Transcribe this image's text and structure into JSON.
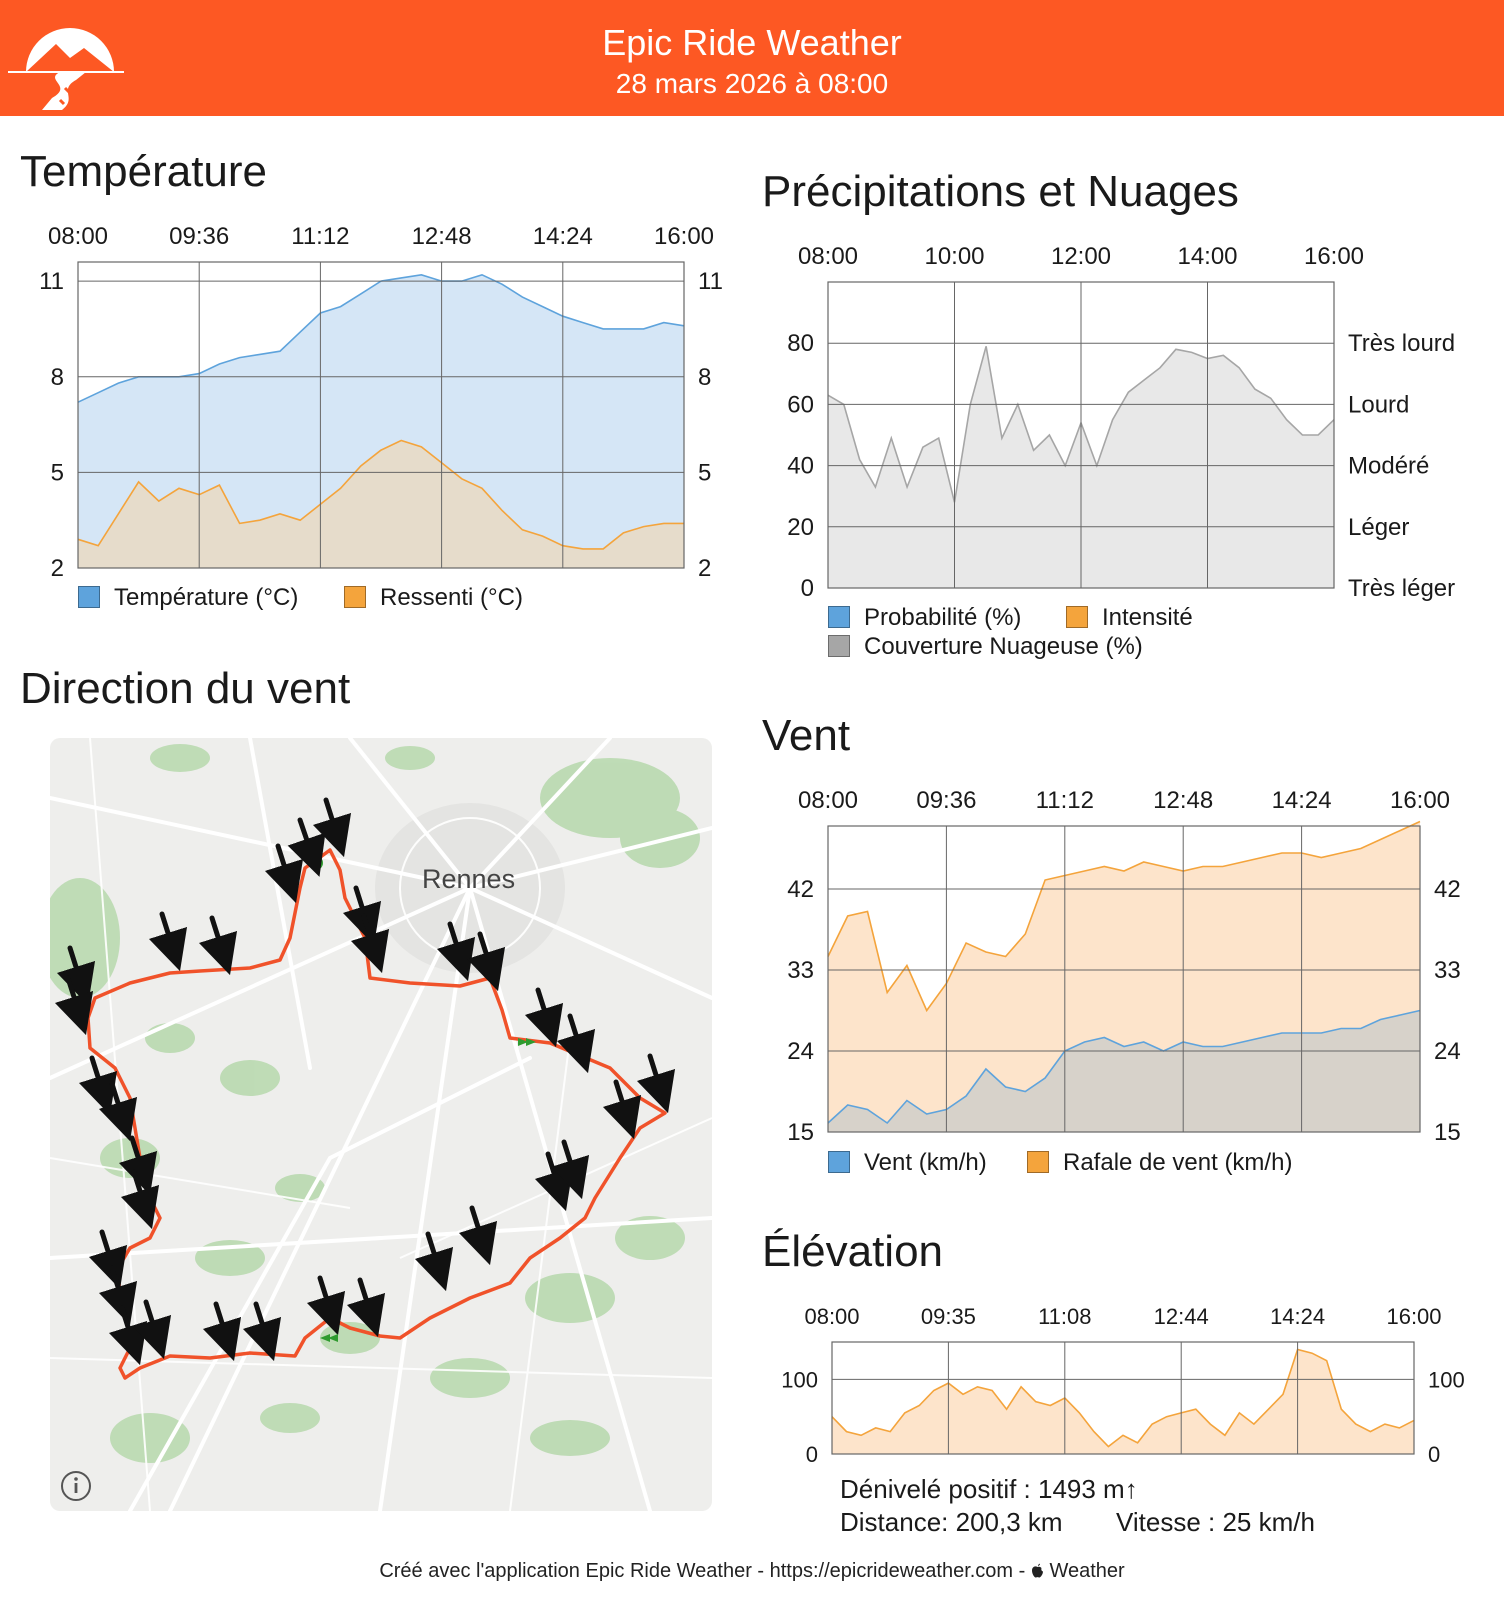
{
  "header": {
    "title": "Epic Ride Weather",
    "date": "28 mars 2026 à 08:00",
    "brand_color": "#fd5823"
  },
  "temperature": {
    "title": "Température",
    "legend": [
      "Température (°C)",
      "Ressenti (°C)"
    ],
    "colors": [
      "#5ea3dc",
      "#f4a43c"
    ]
  },
  "precipitation": {
    "title": "Précipitations et Nuages",
    "legend": [
      "Probabilité (%)",
      "Intensité",
      "Couverture Nuageuse (%)"
    ],
    "colors": [
      "#5ea3dc",
      "#f4a43c",
      "#a6a6a6"
    ]
  },
  "wind_dir": {
    "title": "Direction du vent",
    "city_label": "Rennes",
    "info_icon": "info-icon"
  },
  "wind": {
    "title": "Vent",
    "legend": [
      "Vent (km/h)",
      "Rafale de vent (km/h)"
    ],
    "colors": [
      "#5ea3dc",
      "#f4a43c"
    ]
  },
  "elevation": {
    "title": "Élévation",
    "gain": "Dénivelé positif : 1493 m↑",
    "distance": "Distance: 200,3 km",
    "speed": "Vitesse : 25 km/h"
  },
  "footer": {
    "text": "Créé avec l'application Epic Ride Weather - https://epicrideweather.com - ",
    "weather_label": "Weather",
    "apple_icon": "apple-icon"
  },
  "chart_data": [
    {
      "id": "temperature",
      "type": "area",
      "title": "Température",
      "x_ticks": [
        "08:00",
        "09:36",
        "11:12",
        "12:48",
        "14:24",
        "16:00"
      ],
      "y_ticks": [
        2,
        5,
        8,
        11
      ],
      "ylim": [
        2,
        11.6
      ],
      "x": [
        "08:00",
        "08:16",
        "08:32",
        "08:48",
        "09:04",
        "09:20",
        "09:36",
        "09:52",
        "10:08",
        "10:24",
        "10:40",
        "10:56",
        "11:12",
        "11:28",
        "11:44",
        "12:00",
        "12:16",
        "12:32",
        "12:48",
        "13:04",
        "13:20",
        "13:36",
        "13:52",
        "14:08",
        "14:24",
        "14:40",
        "14:56",
        "15:12",
        "15:28",
        "15:44",
        "16:00"
      ],
      "series": [
        {
          "name": "Température (°C)",
          "values": [
            7.2,
            7.5,
            7.8,
            8.0,
            8.0,
            8.0,
            8.1,
            8.4,
            8.6,
            8.7,
            8.8,
            9.4,
            10.0,
            10.2,
            10.6,
            11.0,
            11.1,
            11.2,
            11.0,
            11.0,
            11.2,
            10.9,
            10.5,
            10.2,
            9.9,
            9.7,
            9.5,
            9.5,
            9.5,
            9.7,
            9.6
          ]
        },
        {
          "name": "Ressenti (°C)",
          "values": [
            2.9,
            2.7,
            3.7,
            4.7,
            4.1,
            4.5,
            4.3,
            4.6,
            3.4,
            3.5,
            3.7,
            3.5,
            4.0,
            4.5,
            5.2,
            5.7,
            6.0,
            5.8,
            5.3,
            4.8,
            4.5,
            3.8,
            3.2,
            3.0,
            2.7,
            2.6,
            2.6,
            3.1,
            3.3,
            3.4,
            3.4
          ]
        }
      ]
    },
    {
      "id": "precipitation",
      "type": "area",
      "title": "Précipitations et Nuages",
      "x_ticks": [
        "08:00",
        "10:00",
        "12:00",
        "14:00",
        "16:00"
      ],
      "y_ticks": [
        0,
        20,
        40,
        60,
        80
      ],
      "ylim": [
        0,
        100
      ],
      "right_ticks": [
        "Très léger",
        "Léger",
        "Modéré",
        "Lourd",
        "Très lourd"
      ],
      "x": [
        "08:00",
        "08:15",
        "08:30",
        "08:45",
        "09:00",
        "09:15",
        "09:30",
        "09:45",
        "10:00",
        "10:15",
        "10:30",
        "10:45",
        "11:00",
        "11:15",
        "11:30",
        "11:45",
        "12:00",
        "12:15",
        "12:30",
        "12:45",
        "13:00",
        "13:15",
        "13:30",
        "13:45",
        "14:00",
        "14:15",
        "14:30",
        "14:45",
        "15:00",
        "15:15",
        "15:30",
        "15:45",
        "16:00"
      ],
      "series": [
        {
          "name": "Couverture Nuageuse (%)",
          "values": [
            63,
            60,
            42,
            33,
            49,
            33,
            46,
            49,
            28,
            60,
            79,
            49,
            60,
            45,
            50,
            40,
            54,
            40,
            55,
            64,
            68,
            72,
            78,
            77,
            75,
            76,
            72,
            65,
            62,
            55,
            50,
            50,
            55
          ]
        }
      ]
    },
    {
      "id": "wind",
      "type": "area",
      "title": "Vent",
      "x_ticks": [
        "08:00",
        "09:36",
        "11:12",
        "12:48",
        "14:24",
        "16:00"
      ],
      "y_ticks": [
        15,
        24,
        33,
        42
      ],
      "ylim": [
        15,
        49
      ],
      "x": [
        "08:00",
        "08:16",
        "08:32",
        "08:48",
        "09:04",
        "09:20",
        "09:36",
        "09:52",
        "10:08",
        "10:24",
        "10:40",
        "10:56",
        "11:12",
        "11:28",
        "11:44",
        "12:00",
        "12:16",
        "12:32",
        "12:48",
        "13:04",
        "13:20",
        "13:36",
        "13:52",
        "14:08",
        "14:24",
        "14:40",
        "14:56",
        "15:12",
        "15:28",
        "15:44",
        "16:00"
      ],
      "series": [
        {
          "name": "Vent (km/h)",
          "values": [
            16.0,
            18.0,
            17.5,
            16.0,
            18.5,
            17.0,
            17.5,
            19.0,
            22.0,
            20.0,
            19.5,
            21.0,
            24.0,
            25.0,
            25.5,
            24.5,
            25.0,
            24.0,
            25.0,
            24.5,
            24.5,
            25.0,
            25.5,
            26.0,
            26.0,
            26.0,
            26.5,
            26.5,
            27.5,
            28.0,
            28.5
          ]
        },
        {
          "name": "Rafale de vent (km/h)",
          "values": [
            34.5,
            39.0,
            39.5,
            30.5,
            33.5,
            28.5,
            31.5,
            36.0,
            35.0,
            34.5,
            37.0,
            43.0,
            43.5,
            44.0,
            44.5,
            44.0,
            45.0,
            44.5,
            44.0,
            44.5,
            44.5,
            45.0,
            45.5,
            46.0,
            46.0,
            45.5,
            46.0,
            46.5,
            47.5,
            48.5,
            49.5
          ]
        }
      ]
    },
    {
      "id": "elevation",
      "type": "area",
      "title": "Élévation",
      "x_ticks": [
        "08:00",
        "09:35",
        "11:08",
        "12:44",
        "14:24",
        "16:00"
      ],
      "y_ticks": [
        0,
        100
      ],
      "ylim": [
        0,
        150
      ],
      "x": [
        "08:00",
        "08:12",
        "08:24",
        "08:36",
        "08:48",
        "09:00",
        "09:12",
        "09:24",
        "09:36",
        "09:48",
        "10:00",
        "10:12",
        "10:24",
        "10:36",
        "10:48",
        "11:00",
        "11:12",
        "11:24",
        "11:36",
        "11:48",
        "12:00",
        "12:12",
        "12:24",
        "12:36",
        "12:48",
        "13:00",
        "13:12",
        "13:24",
        "13:36",
        "13:48",
        "14:00",
        "14:12",
        "14:24",
        "14:36",
        "14:48",
        "15:00",
        "15:12",
        "15:24",
        "15:36",
        "15:48",
        "16:00"
      ],
      "series": [
        {
          "name": "Élévation",
          "values": [
            50,
            30,
            25,
            35,
            30,
            55,
            65,
            85,
            95,
            80,
            90,
            85,
            60,
            90,
            70,
            65,
            75,
            55,
            30,
            10,
            25,
            15,
            40,
            50,
            55,
            60,
            40,
            25,
            55,
            40,
            60,
            80,
            140,
            135,
            125,
            60,
            40,
            30,
            40,
            35,
            45
          ]
        }
      ]
    }
  ]
}
